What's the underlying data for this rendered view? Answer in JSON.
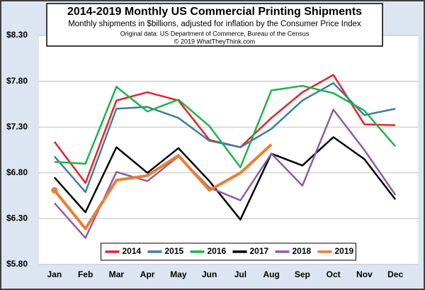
{
  "chart_data": {
    "type": "line",
    "title": "2014-2019 Monthly US Commercial Printing Shipments",
    "subtitle": "Monthly shipments in $billions, adjusted for inflation by the Consumer Price Index",
    "annotations": [
      "Original data: US Department of Commerce, Bureau of the Census",
      "© 2019 WhatTheyThink.com"
    ],
    "categories": [
      "Jan",
      "Feb",
      "Mar",
      "Apr",
      "May",
      "Jun",
      "Jul",
      "Aug",
      "Sep",
      "Oct",
      "Nov",
      "Dec"
    ],
    "series": [
      {
        "name": "2014",
        "color": "#e8222a",
        "values": [
          7.14,
          6.69,
          7.59,
          7.68,
          7.59,
          7.16,
          7.08,
          7.4,
          7.68,
          7.87,
          7.33,
          7.32
        ]
      },
      {
        "name": "2015",
        "color": "#3d7f9e",
        "values": [
          6.98,
          6.59,
          7.5,
          7.52,
          7.4,
          7.15,
          7.08,
          7.28,
          7.59,
          7.78,
          7.43,
          7.5
        ]
      },
      {
        "name": "2016",
        "color": "#1db34a",
        "values": [
          6.92,
          6.9,
          7.74,
          7.47,
          7.6,
          7.31,
          6.86,
          7.7,
          7.75,
          7.67,
          7.48,
          7.09
        ]
      },
      {
        "name": "2017",
        "color": "#000000",
        "values": [
          6.75,
          6.37,
          7.08,
          6.8,
          7.07,
          6.71,
          6.29,
          7.01,
          6.88,
          7.19,
          6.95,
          6.51
        ]
      },
      {
        "name": "2018",
        "color": "#8a5ea6",
        "values": [
          6.47,
          6.09,
          6.81,
          6.71,
          6.98,
          6.64,
          6.5,
          7.01,
          6.66,
          7.49,
          7.05,
          6.56
        ]
      },
      {
        "name": "2019",
        "color": "#ed7d31",
        "values": [
          6.61,
          6.19,
          6.72,
          6.77,
          6.99,
          6.61,
          6.8,
          7.11,
          null,
          null,
          null,
          null
        ]
      }
    ],
    "ylim": [
      5.8,
      8.3
    ],
    "yticks": [
      {
        "value": 5.8,
        "label": "$5.80"
      },
      {
        "value": 6.3,
        "label": "$6.30"
      },
      {
        "value": 6.8,
        "label": "$6.80"
      },
      {
        "value": 7.3,
        "label": "$7.30"
      },
      {
        "value": 7.8,
        "label": "$7.80"
      },
      {
        "value": 8.3,
        "label": "$8.30"
      }
    ],
    "grid": true,
    "legend": "lower center"
  }
}
